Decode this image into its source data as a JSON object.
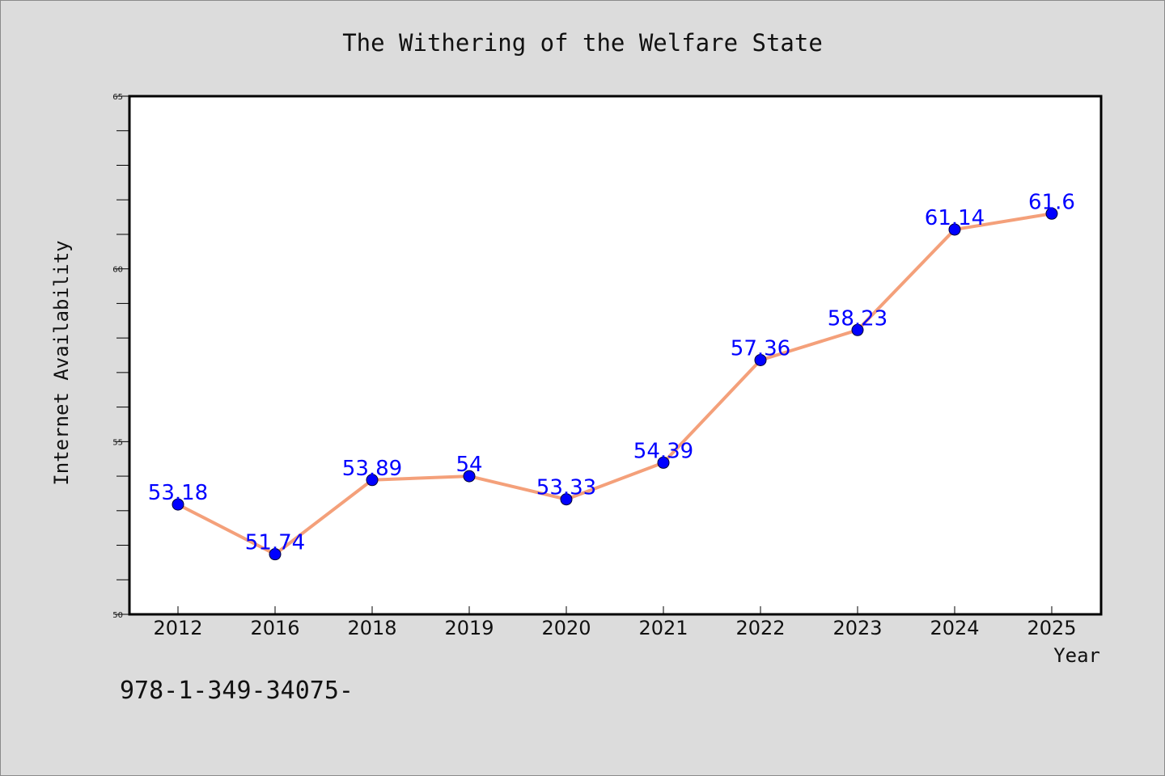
{
  "chart_data": {
    "type": "line",
    "title": "The Withering of the Welfare State",
    "xlabel": "Year",
    "ylabel": "Internet Availability",
    "categories": [
      "2012",
      "2016",
      "2018",
      "2019",
      "2020",
      "2021",
      "2022",
      "2023",
      "2024",
      "2025"
    ],
    "series": [
      {
        "values": [
          53.18,
          51.74,
          53.89,
          54,
          53.33,
          54.39,
          57.36,
          58.23,
          61.14,
          61.6
        ],
        "labels": [
          "53.18",
          "51.74",
          "53.89",
          "54",
          "53.33",
          "54.39",
          "57.36",
          "58.23",
          "61.14",
          "61.6"
        ],
        "line_color": "#f4a07a",
        "marker_color": "#0000ff"
      }
    ],
    "ylim": [
      50,
      65
    ],
    "yticks": [
      "50",
      "55",
      "60",
      "65"
    ],
    "grid": false,
    "legend": false
  },
  "footer": {
    "isbn": "978-1-349-34075-"
  },
  "colors": {
    "background": "#dcdcdc",
    "plot_background": "#ffffff",
    "line": "#f4a07a",
    "marker": "#0000ff",
    "data_label": "#0000ff"
  }
}
